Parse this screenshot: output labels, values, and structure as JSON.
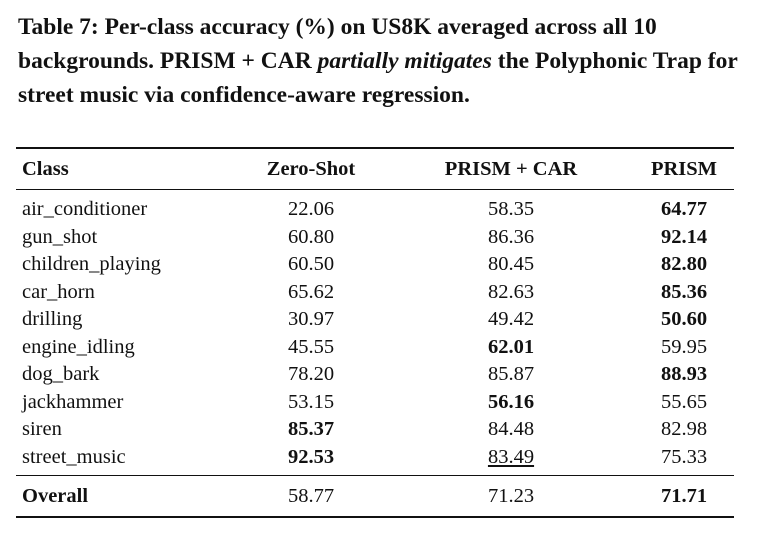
{
  "caption": {
    "part1": "Table 7: Per-class accuracy (%) on US8K averaged across all 10 backgrounds. PRISM + CAR ",
    "emphasis": "partially mitigates",
    "part2": " the Polyphonic Trap for street music via confidence-aware regression."
  },
  "table": {
    "headers": [
      "Class",
      "Zero-Shot",
      "PRISM + CAR",
      "PRISM"
    ],
    "rows": [
      {
        "cells": [
          "air_conditioner",
          "22.06",
          "58.35",
          "64.77"
        ],
        "bold": [
          3
        ],
        "underline": []
      },
      {
        "cells": [
          "gun_shot",
          "60.80",
          "86.36",
          "92.14"
        ],
        "bold": [
          3
        ],
        "underline": []
      },
      {
        "cells": [
          "children_playing",
          "60.50",
          "80.45",
          "82.80"
        ],
        "bold": [
          3
        ],
        "underline": []
      },
      {
        "cells": [
          "car_horn",
          "65.62",
          "82.63",
          "85.36"
        ],
        "bold": [
          3
        ],
        "underline": []
      },
      {
        "cells": [
          "drilling",
          "30.97",
          "49.42",
          "50.60"
        ],
        "bold": [
          3
        ],
        "underline": []
      },
      {
        "cells": [
          "engine_idling",
          "45.55",
          "62.01",
          "59.95"
        ],
        "bold": [
          2
        ],
        "underline": []
      },
      {
        "cells": [
          "dog_bark",
          "78.20",
          "85.87",
          "88.93"
        ],
        "bold": [
          3
        ],
        "underline": []
      },
      {
        "cells": [
          "jackhammer",
          "53.15",
          "56.16",
          "55.65"
        ],
        "bold": [
          2
        ],
        "underline": []
      },
      {
        "cells": [
          "siren",
          "85.37",
          "84.48",
          "82.98"
        ],
        "bold": [
          1
        ],
        "underline": []
      },
      {
        "cells": [
          "street_music",
          "92.53",
          "83.49",
          "75.33"
        ],
        "bold": [
          1
        ],
        "underline": [
          2
        ]
      }
    ],
    "overall": {
      "cells": [
        "Overall",
        "58.77",
        "71.23",
        "71.71"
      ],
      "bold": [
        0,
        3
      ]
    }
  }
}
